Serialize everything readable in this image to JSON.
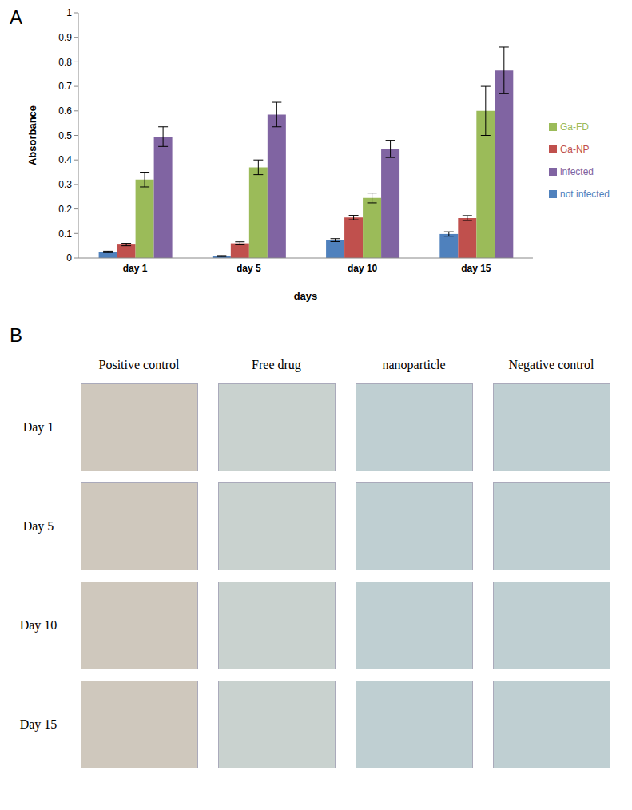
{
  "panel_labels": [
    "A",
    "B"
  ],
  "chart_data": {
    "type": "bar",
    "x_label": "days",
    "y_label": "Absorbance",
    "categories": [
      "day 1",
      "day 5",
      "day 10",
      "day 15"
    ],
    "series": [
      {
        "name": "not infected",
        "color": "#4F81BD",
        "values": [
          0.025,
          0.008,
          0.073,
          0.098
        ],
        "errors": [
          0.003,
          0.002,
          0.006,
          0.009
        ]
      },
      {
        "name": "Ga-NP",
        "color": "#C0504D",
        "values": [
          0.055,
          0.06,
          0.165,
          0.163
        ],
        "errors": [
          0.005,
          0.006,
          0.009,
          0.01
        ]
      },
      {
        "name": "Ga-FD",
        "color": "#9BBB59",
        "values": [
          0.32,
          0.37,
          0.245,
          0.6
        ],
        "errors": [
          0.03,
          0.03,
          0.02,
          0.1
        ]
      },
      {
        "name": "infected",
        "color": "#8064A2",
        "values": [
          0.495,
          0.585,
          0.445,
          0.765
        ],
        "errors": [
          0.04,
          0.05,
          0.035,
          0.095
        ]
      }
    ],
    "ylim": [
      0,
      1
    ],
    "yticks": [
      0,
      0.1,
      0.2,
      0.3,
      0.4,
      0.5,
      0.6,
      0.7,
      0.8,
      0.9,
      1
    ],
    "grid": false,
    "legend": "right"
  },
  "panel_b": {
    "columns": [
      "Positive control",
      "Free drug",
      "nanoparticle",
      "Negative control"
    ],
    "rows": [
      "Day 1",
      "Day 5",
      "Day 10",
      "Day 15"
    ]
  }
}
